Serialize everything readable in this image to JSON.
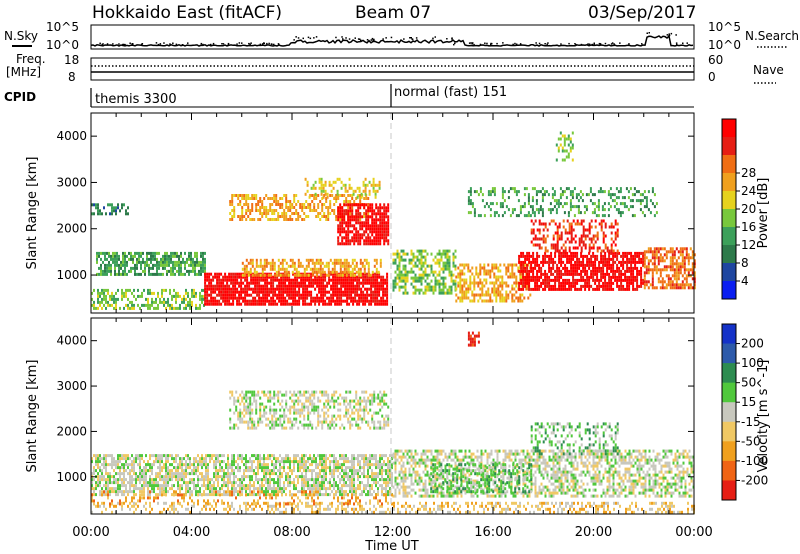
{
  "header": {
    "station": "Hokkaido East (fitACF)",
    "beam": "Beam 07",
    "date": "03/Sep/2017"
  },
  "top_panels": {
    "nsky_label": "N.Sky",
    "nsearch_label": "N.Search",
    "noise_ticks": [
      "10^5",
      "10^0"
    ],
    "freq_label": "Freq.",
    "freq_unit": "[MHz]",
    "freq_ticks": [
      "18",
      "8"
    ],
    "nave_label": "Nave",
    "nave_ticks": [
      "60",
      "0"
    ],
    "cpid_label": "CPID",
    "cpid_segments": [
      {
        "label": "themis 3300",
        "start_h": 0
      },
      {
        "label": "normal (fast) 151",
        "start_h": 12
      }
    ]
  },
  "colors": {
    "power": [
      "#0a1ef0",
      "#1e46a0",
      "#2d7a4a",
      "#3ca05a",
      "#78c83c",
      "#e6d21e",
      "#f0a01e",
      "#f06e14",
      "#e61e14",
      "#ff0000"
    ],
    "velocity": [
      "#1432c8",
      "#2d5aaa",
      "#2d8c50",
      "#50c83c",
      "#c8c8be",
      "#f0c864",
      "#f0a01e",
      "#f06414",
      "#e61e14"
    ],
    "dash": "#c8c8c8"
  },
  "chart_data": [
    {
      "type": "heatmap",
      "title": "Power",
      "xlabel": "Time UT",
      "ylabel": "Slant Range [km]",
      "xlim": [
        0,
        24
      ],
      "ylim": [
        180,
        4500
      ],
      "x_ticks": [
        "00:00",
        "04:00",
        "08:00",
        "12:00",
        "16:00",
        "20:00",
        "00:00"
      ],
      "y_ticks": [
        1000,
        2000,
        3000,
        4000
      ],
      "colorbar_label": "Power [dB]",
      "colorbar_ticks": [
        "4",
        "8",
        "12",
        "16",
        "20",
        "24",
        "28"
      ],
      "regions": [
        {
          "t": [
            0.2,
            4.5
          ],
          "r": [
            1000,
            1500
          ],
          "level": 3,
          "density": 0.7
        },
        {
          "t": [
            0.0,
            4.5
          ],
          "r": [
            300,
            700
          ],
          "level": 4,
          "density": 0.5
        },
        {
          "t": [
            0.0,
            1.5
          ],
          "r": [
            2350,
            2550
          ],
          "level": 2,
          "density": 0.6
        },
        {
          "t": [
            4.5,
            11.8
          ],
          "r": [
            350,
            1050
          ],
          "level": 9,
          "density": 0.85
        },
        {
          "t": [
            6.0,
            11.5
          ],
          "r": [
            1000,
            1350
          ],
          "level": 6,
          "density": 0.6
        },
        {
          "t": [
            5.5,
            11.0
          ],
          "r": [
            2200,
            2750
          ],
          "level": 6,
          "density": 0.5
        },
        {
          "t": [
            9.8,
            11.8
          ],
          "r": [
            1700,
            2550
          ],
          "level": 9,
          "density": 0.75
        },
        {
          "t": [
            8.5,
            11.5
          ],
          "r": [
            2700,
            3100
          ],
          "level": 5,
          "density": 0.35
        },
        {
          "t": [
            12.0,
            14.5
          ],
          "r": [
            600,
            1550
          ],
          "level": 4,
          "density": 0.55
        },
        {
          "t": [
            14.5,
            17.5
          ],
          "r": [
            450,
            1250
          ],
          "level": 6,
          "density": 0.55
        },
        {
          "t": [
            17.0,
            22.0
          ],
          "r": [
            700,
            1500
          ],
          "level": 9,
          "density": 0.75
        },
        {
          "t": [
            17.5,
            21.0
          ],
          "r": [
            1500,
            2200
          ],
          "level": 8,
          "density": 0.45
        },
        {
          "t": [
            22.0,
            24.0
          ],
          "r": [
            700,
            1600
          ],
          "level": 7,
          "density": 0.6
        },
        {
          "t": [
            15.0,
            22.5
          ],
          "r": [
            2300,
            2900
          ],
          "level": 3,
          "density": 0.3
        },
        {
          "t": [
            18.5,
            19.2
          ],
          "r": [
            3500,
            4100
          ],
          "level": 4,
          "density": 0.3
        }
      ]
    },
    {
      "type": "heatmap",
      "title": "Velocity",
      "xlabel": "Time UT",
      "ylabel": "Slant Range [km]",
      "xlim": [
        0,
        24
      ],
      "ylim": [
        180,
        4500
      ],
      "x_ticks": [
        "00:00",
        "04:00",
        "08:00",
        "12:00",
        "16:00",
        "20:00",
        "00:00"
      ],
      "y_ticks": [
        1000,
        2000,
        3000,
        4000
      ],
      "colorbar_label": "Velocity [m s^-1]",
      "colorbar_ticks": [
        "200",
        "100",
        "50",
        "15",
        "-15",
        "-50",
        "-100",
        "-200"
      ],
      "regions": [
        {
          "t": [
            0.0,
            12.0
          ],
          "r": [
            600,
            1500
          ],
          "level": 4,
          "density": 0.7
        },
        {
          "t": [
            0.0,
            24.0
          ],
          "r": [
            200,
            450
          ],
          "level": 5,
          "density": 0.35
        },
        {
          "t": [
            5.5,
            11.8
          ],
          "r": [
            2100,
            2900
          ],
          "level": 4,
          "density": 0.5
        },
        {
          "t": [
            12.0,
            24.0
          ],
          "r": [
            600,
            1600
          ],
          "level": 4,
          "density": 0.55
        },
        {
          "t": [
            13.5,
            17.5
          ],
          "r": [
            700,
            1300
          ],
          "level": 3,
          "density": 0.45
        },
        {
          "t": [
            17.5,
            21.0
          ],
          "r": [
            1500,
            2200
          ],
          "level": 3,
          "density": 0.35
        },
        {
          "t": [
            15.0,
            15.4
          ],
          "r": [
            3900,
            4200
          ],
          "level": 8,
          "density": 0.8
        },
        {
          "t": [
            0.0,
            12.0
          ],
          "r": [
            400,
            700
          ],
          "level": 6,
          "density": 0.2
        }
      ]
    }
  ]
}
